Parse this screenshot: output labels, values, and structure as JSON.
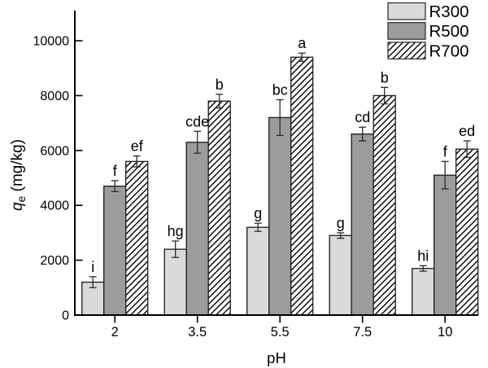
{
  "chart_data": {
    "type": "bar",
    "title": "",
    "xlabel": "pH",
    "ylabel": "qe (mg/kg)",
    "ylabel_parts": {
      "symbol": "q",
      "subscript": "e",
      "units": " (mg/kg)"
    },
    "categories": [
      "2",
      "3.5",
      "5.5",
      "7.5",
      "10"
    ],
    "series": [
      {
        "name": "R300",
        "fill": "#dadada",
        "pattern": "solid",
        "values": [
          1200,
          2400,
          3200,
          2900,
          1700
        ],
        "errors": [
          200,
          300,
          150,
          100,
          100
        ],
        "letters": [
          "i",
          "hg",
          "g",
          "g",
          "hi"
        ]
      },
      {
        "name": "R500",
        "fill": "#9c9c9c",
        "pattern": "solid",
        "values": [
          4700,
          6300,
          7200,
          6600,
          5100
        ],
        "errors": [
          200,
          400,
          650,
          250,
          500
        ],
        "letters": [
          "f",
          "cde",
          "bc",
          "cd",
          "f"
        ]
      },
      {
        "name": "R700",
        "fill": "#ffffff",
        "pattern": "diagonal-hatch",
        "values": [
          5600,
          7800,
          9400,
          8000,
          6050
        ],
        "errors": [
          200,
          250,
          150,
          300,
          300
        ],
        "letters": [
          "ef",
          "b",
          "a",
          "b",
          "ed"
        ]
      }
    ],
    "yticks": [
      0,
      2000,
      4000,
      6000,
      8000,
      10000
    ],
    "ylim": [
      0,
      11100
    ],
    "grid": false,
    "legend_position": "top-right",
    "colors": {
      "axis": "#000000",
      "bar_outline": "#1a1a1a",
      "error_bar": "#2b2b2b",
      "hatch_line": "#000000",
      "background": "#ffffff"
    }
  }
}
